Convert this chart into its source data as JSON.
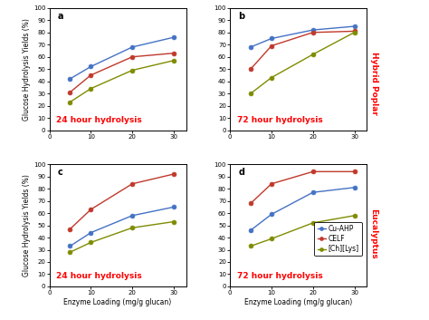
{
  "x": [
    5,
    10,
    20,
    30
  ],
  "panels": [
    {
      "label": "a",
      "title": "24 hour hydrolysis",
      "cu_ahp": [
        42,
        52,
        68,
        76
      ],
      "celf": [
        31,
        45,
        60,
        63
      ],
      "ch_lys": [
        23,
        34,
        49,
        57
      ],
      "ylim": [
        0,
        100
      ],
      "row": 0,
      "col": 0
    },
    {
      "label": "b",
      "title": "72 hour hydrolysis",
      "cu_ahp": [
        68,
        75,
        82,
        85
      ],
      "celf": [
        50,
        69,
        80,
        81
      ],
      "ch_lys": [
        30,
        43,
        62,
        80
      ],
      "ylim": [
        0,
        100
      ],
      "row": 0,
      "col": 1
    },
    {
      "label": "c",
      "title": "24 hour hydrolysis",
      "cu_ahp": [
        33,
        44,
        58,
        65
      ],
      "celf": [
        47,
        63,
        84,
        92
      ],
      "ch_lys": [
        28,
        36,
        48,
        53
      ],
      "ylim": [
        0,
        100
      ],
      "row": 1,
      "col": 0
    },
    {
      "label": "d",
      "title": "72 hour hydrolysis",
      "cu_ahp": [
        46,
        59,
        77,
        81
      ],
      "celf": [
        68,
        84,
        94,
        94
      ],
      "ch_lys": [
        33,
        39,
        52,
        58
      ],
      "ylim": [
        0,
        100
      ],
      "row": 1,
      "col": 1
    }
  ],
  "color_cu_ahp": "#4472C4",
  "color_celf": "#C0392B",
  "color_ch_lys": "#7F8C00",
  "marker": "o",
  "xlabel": "Enzyme Loading (mg/g glucan)",
  "ylabel": "Glucose Hydrolysis Yields (%)",
  "legend_labels": [
    "Cu-AHP",
    "CELF",
    "[Ch][Lys]"
  ],
  "side_label_top": "Hybrid Poplar",
  "side_label_bottom": "Eucalyptus",
  "title_fontsize": 6.5,
  "label_fontsize": 5.5,
  "tick_fontsize": 5.0,
  "panel_label_fontsize": 7.0,
  "side_fontsize": 6.5,
  "legend_fontsize": 5.5
}
